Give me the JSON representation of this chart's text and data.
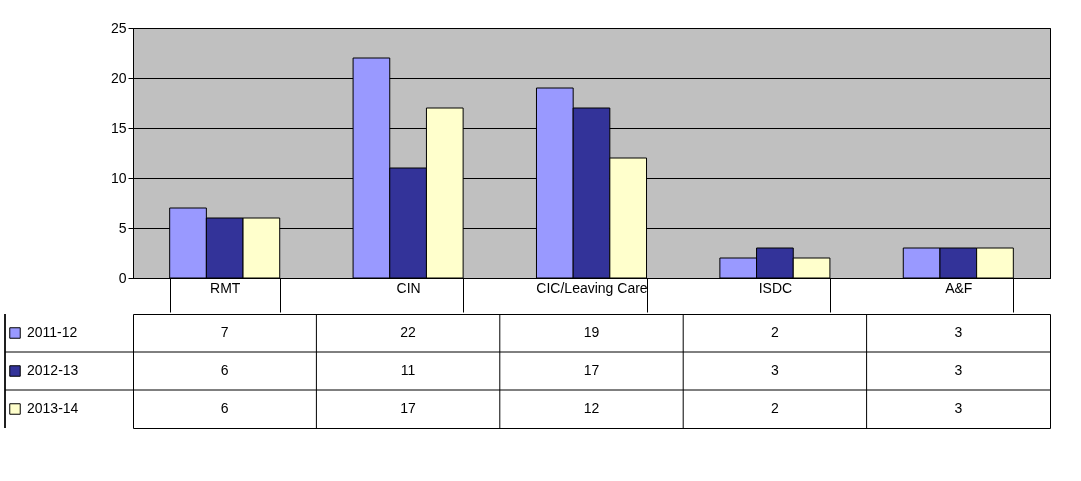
{
  "chart_data": {
    "type": "bar",
    "categories": [
      "RMT",
      "CIN",
      "CIC/Leaving Care",
      "ISDC",
      "A&F"
    ],
    "series": [
      {
        "name": "2011-12",
        "color": "#9999ff",
        "values": [
          7,
          22,
          19,
          2,
          3
        ]
      },
      {
        "name": "2012-13",
        "color": "#333399",
        "values": [
          6,
          11,
          17,
          3,
          3
        ]
      },
      {
        "name": "2013-14",
        "color": "#ffffcc",
        "values": [
          6,
          17,
          12,
          2,
          3
        ]
      }
    ],
    "ylim": [
      0,
      25
    ],
    "yticks": [
      0,
      5,
      10,
      15,
      20,
      25
    ],
    "grid": "y",
    "legend": "bottom left",
    "data_labels": true
  }
}
